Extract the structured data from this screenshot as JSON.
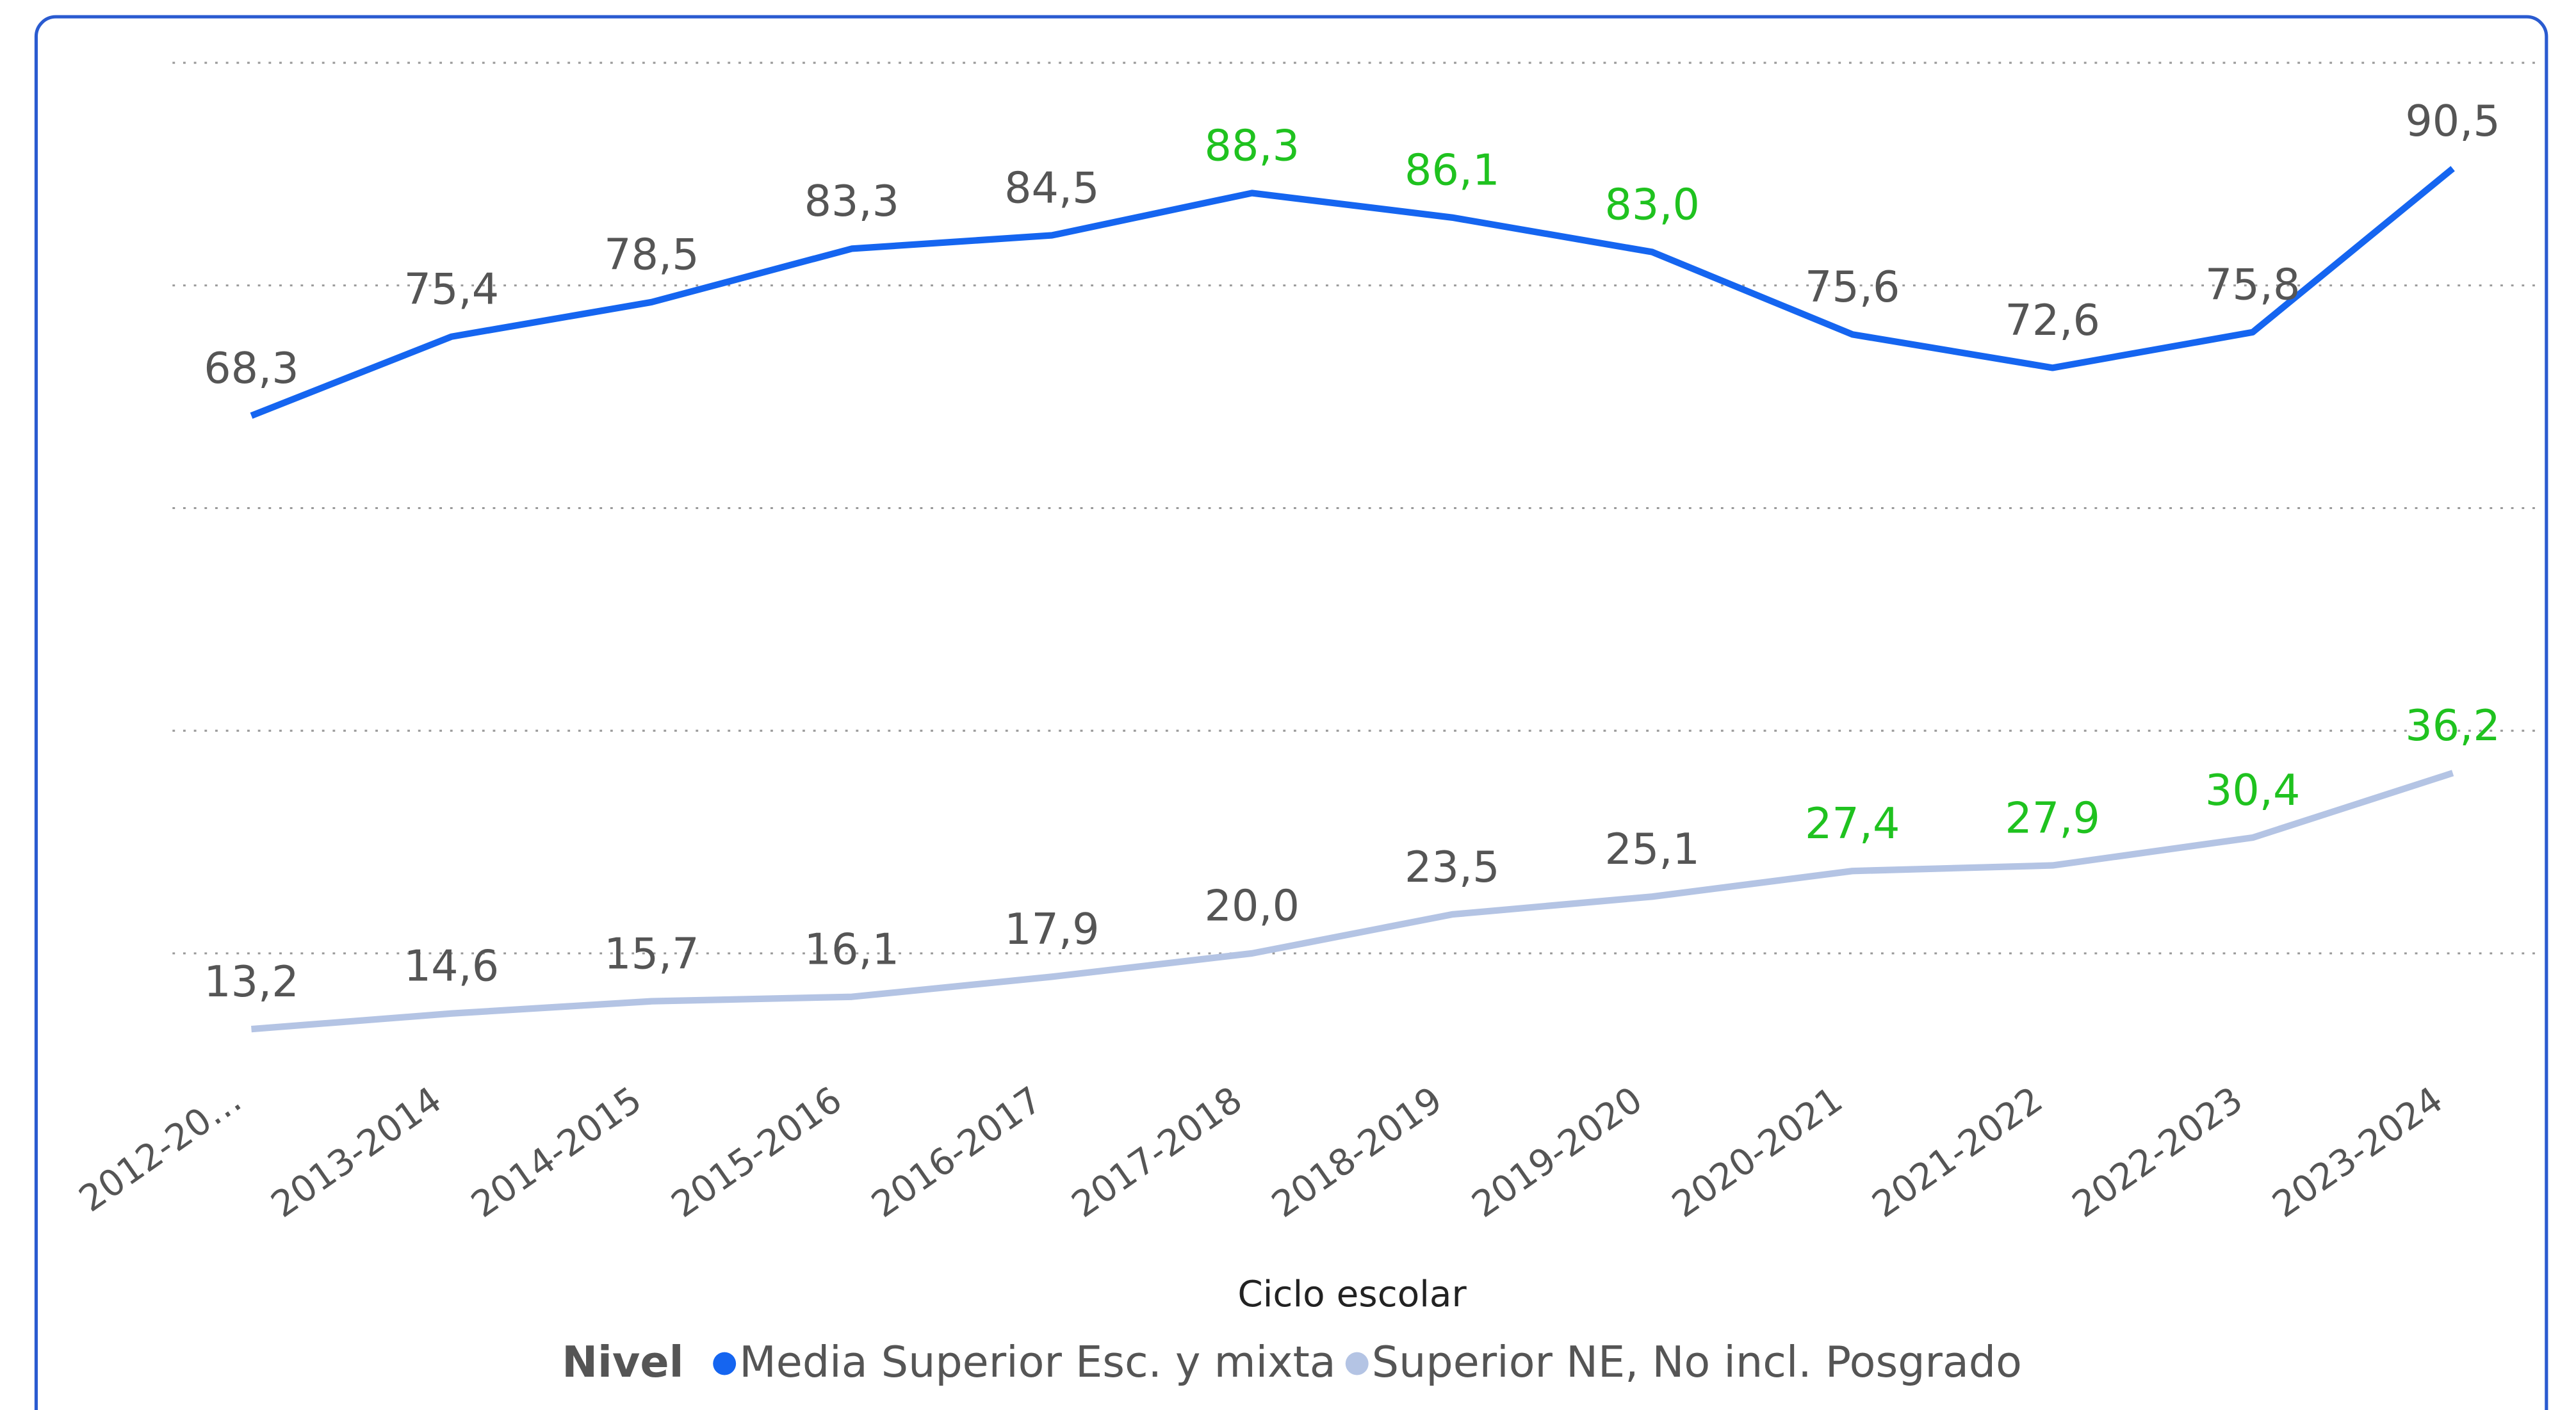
{
  "chart_data": {
    "type": "line",
    "x_label": "Ciclo escolar",
    "legend_title": "Nivel",
    "categories": [
      "2012-20…",
      "2013-2014",
      "2014-2015",
      "2015-2016",
      "2016-2017",
      "2017-2018",
      "2018-2019",
      "2019-2020",
      "2020-2021",
      "2021-2022",
      "2022-2023",
      "2023-2024"
    ],
    "series": [
      {
        "name": "Media Superior Esc. y mixta",
        "color": "#1565f0",
        "values": [
          68.3,
          75.4,
          78.5,
          83.3,
          84.5,
          88.3,
          86.1,
          83.0,
          75.6,
          72.6,
          75.8,
          90.5
        ],
        "value_labels": [
          "68,3",
          "75,4",
          "78,5",
          "83,3",
          "84,5",
          "88,3",
          "86,1",
          "83,0",
          "75,6",
          "72,6",
          "75,8",
          "90,5"
        ],
        "label_colors": [
          "#555555",
          "#555555",
          "#555555",
          "#555555",
          "#555555",
          "#1fc21f",
          "#1fc21f",
          "#1fc21f",
          "#555555",
          "#555555",
          "#555555",
          "#555555"
        ]
      },
      {
        "name": "Superior NE, No incl. Posgrado",
        "color": "#b4c4e4",
        "values": [
          13.2,
          14.6,
          15.7,
          16.1,
          17.9,
          20.0,
          23.5,
          25.1,
          27.4,
          27.9,
          30.4,
          36.2
        ],
        "value_labels": [
          "13,2",
          "14,6",
          "15,7",
          "16,1",
          "17,9",
          "20,0",
          "23,5",
          "25,1",
          "27,4",
          "27,9",
          "30,4",
          "36,2"
        ],
        "label_colors": [
          "#555555",
          "#555555",
          "#555555",
          "#555555",
          "#555555",
          "#555555",
          "#555555",
          "#555555",
          "#1fc21f",
          "#1fc21f",
          "#1fc21f",
          "#1fc21f"
        ]
      }
    ],
    "ylim": [
      10,
      100
    ],
    "yticks": [
      20,
      40,
      60,
      80,
      100
    ],
    "grid": true,
    "legend_position": "bottom"
  }
}
